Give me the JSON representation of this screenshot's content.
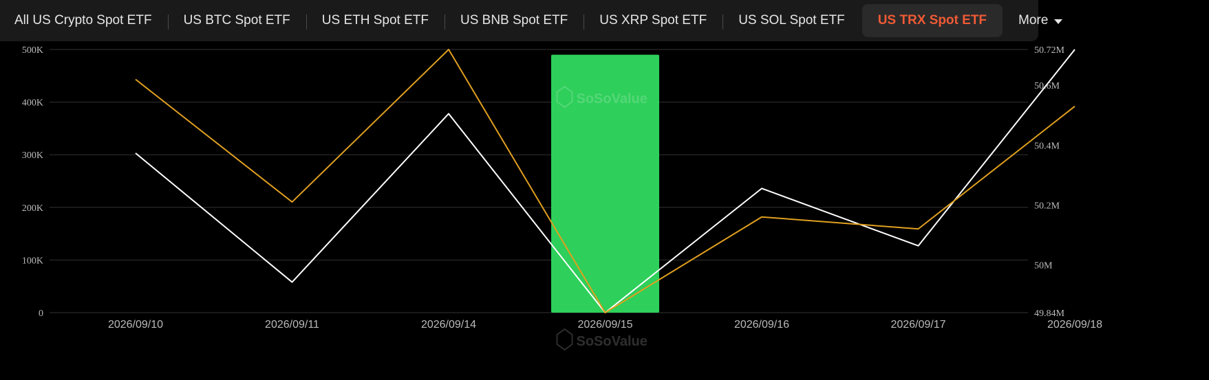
{
  "tabs": [
    {
      "label": "All US Crypto Spot ETF",
      "active": false
    },
    {
      "label": "US BTC Spot ETF",
      "active": false
    },
    {
      "label": "US ETH Spot ETF",
      "active": false
    },
    {
      "label": "US BNB Spot ETF",
      "active": false
    },
    {
      "label": "US XRP Spot ETF",
      "active": false
    },
    {
      "label": "US SOL Spot ETF",
      "active": false
    },
    {
      "label": "US TRX Spot ETF",
      "active": true
    }
  ],
  "more_label": "More",
  "watermark": "SoSoValue",
  "colors": {
    "accent": "#f05a35",
    "bar": "#2ecf5a",
    "line_white": "#ffffff",
    "line_orange": "#e0a020",
    "grid": "#333333"
  },
  "chart_data": {
    "type": "bar+line",
    "categories": [
      "2026/09/10",
      "2026/09/11",
      "2026/09/14",
      "2026/09/15",
      "2026/09/16",
      "2026/09/17",
      "2026/09/18"
    ],
    "left_axis": {
      "ticks": [
        "0",
        "100K",
        "200K",
        "300K",
        "400K",
        "500K"
      ],
      "ylim": [
        0,
        500000
      ]
    },
    "right_axis": {
      "ticks": [
        "49.84M",
        "50M",
        "50.2M",
        "50.4M",
        "50.6M",
        "50.72M"
      ],
      "ylim": [
        49.84,
        50.72
      ]
    },
    "bars": {
      "axis": "left",
      "values": [
        0,
        0,
        0,
        490000,
        0,
        0,
        0
      ]
    },
    "series": [
      {
        "axis": "left",
        "color": "white",
        "values": [
          303000,
          58000,
          378000,
          0,
          236000,
          127000,
          500000
        ]
      },
      {
        "axis": "right",
        "color": "orange",
        "values": [
          50.62,
          50.21,
          50.72,
          49.84,
          50.16,
          50.12,
          50.53
        ]
      }
    ],
    "grid": true
  }
}
